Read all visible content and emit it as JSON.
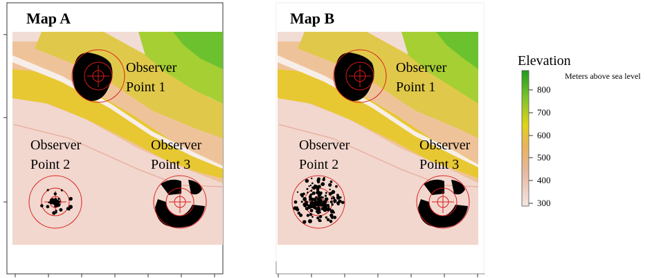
{
  "maps": [
    {
      "title": "Map A",
      "observer_points": [
        {
          "label_line1": "Observer",
          "label_line2": "Point 1",
          "spread": "near"
        },
        {
          "label_line1": "Observer",
          "label_line2": "Point 2",
          "spread": "sparse"
        },
        {
          "label_line1": "Observer",
          "label_line2": "Point 3",
          "spread": "near"
        }
      ]
    },
    {
      "title": "Map B",
      "observer_points": [
        {
          "label_line1": "Observer",
          "label_line2": "Point 1",
          "spread": "near"
        },
        {
          "label_line1": "Observer",
          "label_line2": "Point 2",
          "spread": "dense"
        },
        {
          "label_line1": "Observer",
          "label_line2": "Point 3",
          "spread": "near"
        }
      ]
    }
  ],
  "legend": {
    "title": "Elevation",
    "subtitle": "Meters above sea level",
    "ticks": [
      "800",
      "700",
      "600",
      "500",
      "400",
      "300"
    ],
    "colors": [
      "#1f9a1f",
      "#7cc42a",
      "#e0d21a",
      "#e9b45a",
      "#e6b8a0",
      "#f4e6e2"
    ]
  },
  "colors": {
    "ring": "#d81b1b",
    "viewshed": "#000000",
    "lowland": "#f2ddd6",
    "ridge": "#e8c020",
    "highland": "#6cc22e"
  }
}
